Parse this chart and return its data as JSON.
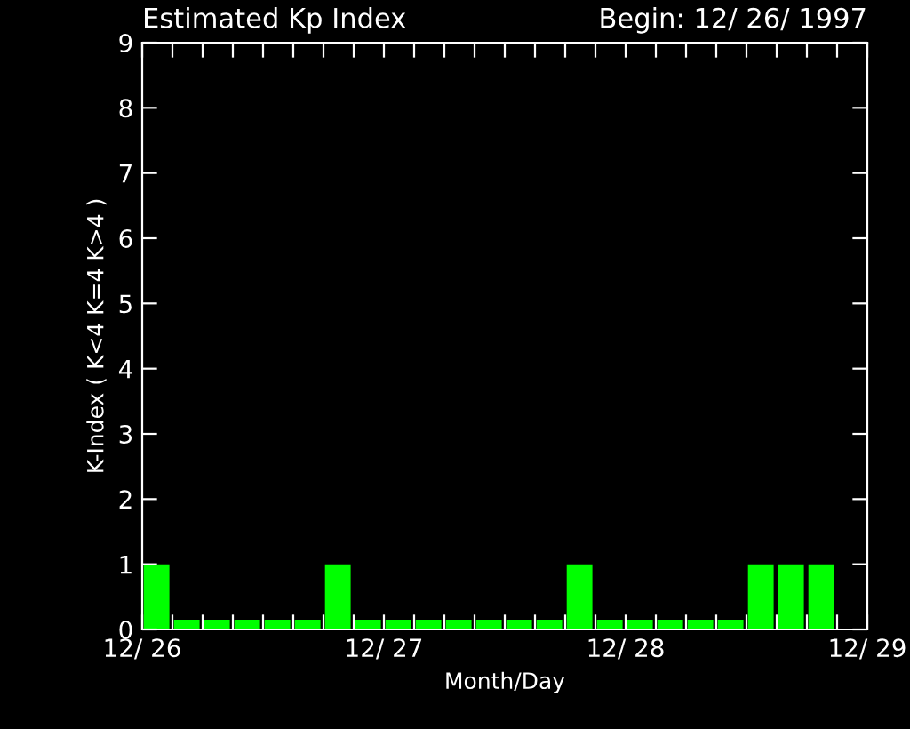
{
  "chart_data": {
    "type": "bar",
    "title": "Estimated Kp Index",
    "subtitle": "Begin: 12/ 26/ 1997",
    "xlabel": "Month/Day",
    "ylabel": "K-Index ( K<4 K=4 K>4 )",
    "categories": [
      "12/ 26",
      null,
      null,
      null,
      null,
      null,
      null,
      null,
      "12/ 27",
      null,
      null,
      null,
      null,
      null,
      null,
      null,
      "12/ 28",
      null,
      null,
      null,
      null,
      null,
      null,
      null,
      "12/ 29"
    ],
    "values": [
      1,
      0.15,
      0.15,
      0.15,
      0.15,
      0.15,
      1,
      0.15,
      0.15,
      0.15,
      0.15,
      0.15,
      0.15,
      0.15,
      1,
      0.15,
      0.15,
      0.15,
      0.15,
      0.15,
      1,
      1,
      1,
      null,
      null
    ],
    "color": "#00ff00",
    "ylim": [
      0,
      9
    ],
    "yticks": [
      0,
      1,
      2,
      3,
      4,
      5,
      6,
      7,
      8,
      9
    ],
    "grid": false,
    "legend": false
  }
}
